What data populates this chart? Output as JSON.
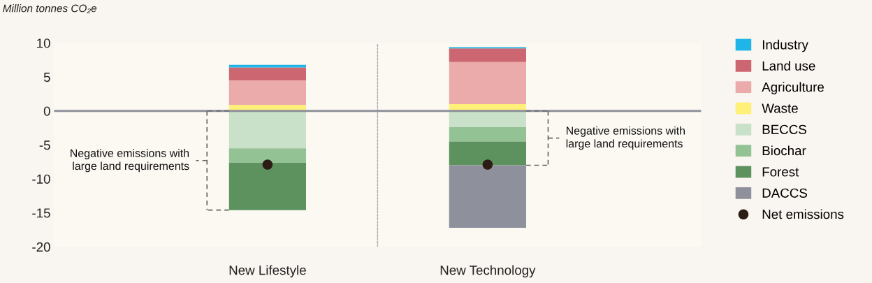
{
  "chart_data": {
    "type": "bar",
    "stacked": true,
    "ylabel": "Million tonnes CO₂e",
    "categories": [
      "New Lifestyle",
      "New Technology"
    ],
    "series": [
      {
        "name": "Waste",
        "color": "#fff07a",
        "values": [
          0.9,
          1.0
        ]
      },
      {
        "name": "Agriculture",
        "color": "#ebabab",
        "values": [
          3.6,
          6.2
        ]
      },
      {
        "name": "Land use",
        "color": "#cc6670",
        "values": [
          1.9,
          2.0
        ]
      },
      {
        "name": "Industry",
        "color": "#1fb5e8",
        "values": [
          0.4,
          0.2
        ]
      },
      {
        "name": "BECCS",
        "color": "#c8e1c8",
        "values": [
          -5.5,
          -2.4
        ]
      },
      {
        "name": "Biochar",
        "color": "#93c295",
        "values": [
          -2.1,
          -2.1
        ]
      },
      {
        "name": "Forest",
        "color": "#5d925f",
        "values": [
          -7.0,
          -3.5
        ]
      },
      {
        "name": "DACCS",
        "color": "#8e919c",
        "values": [
          null,
          -9.2
        ]
      },
      {
        "name": "Net emissions",
        "type": "scatter",
        "color": "#2b1d14",
        "marker": "circle",
        "values": [
          -7.9,
          -7.9
        ]
      }
    ],
    "ylim": [
      -20,
      10
    ],
    "yticks": [
      10,
      5,
      0,
      {
        "value": -5,
        "label": "-5"
      },
      {
        "value": -10,
        "label": "-10"
      },
      {
        "value": -15,
        "label": "-15"
      },
      {
        "value": -20,
        "label": "-20"
      }
    ],
    "ref_lines": [
      {
        "axis": "y",
        "value": 0,
        "color": "#8e919c",
        "line_style": "solid"
      }
    ],
    "annotations": [
      "Negative emissions with\nlarge land requirements",
      "Negative emissions with\nlarge land requirements"
    ],
    "grid": false,
    "legend": "right"
  }
}
